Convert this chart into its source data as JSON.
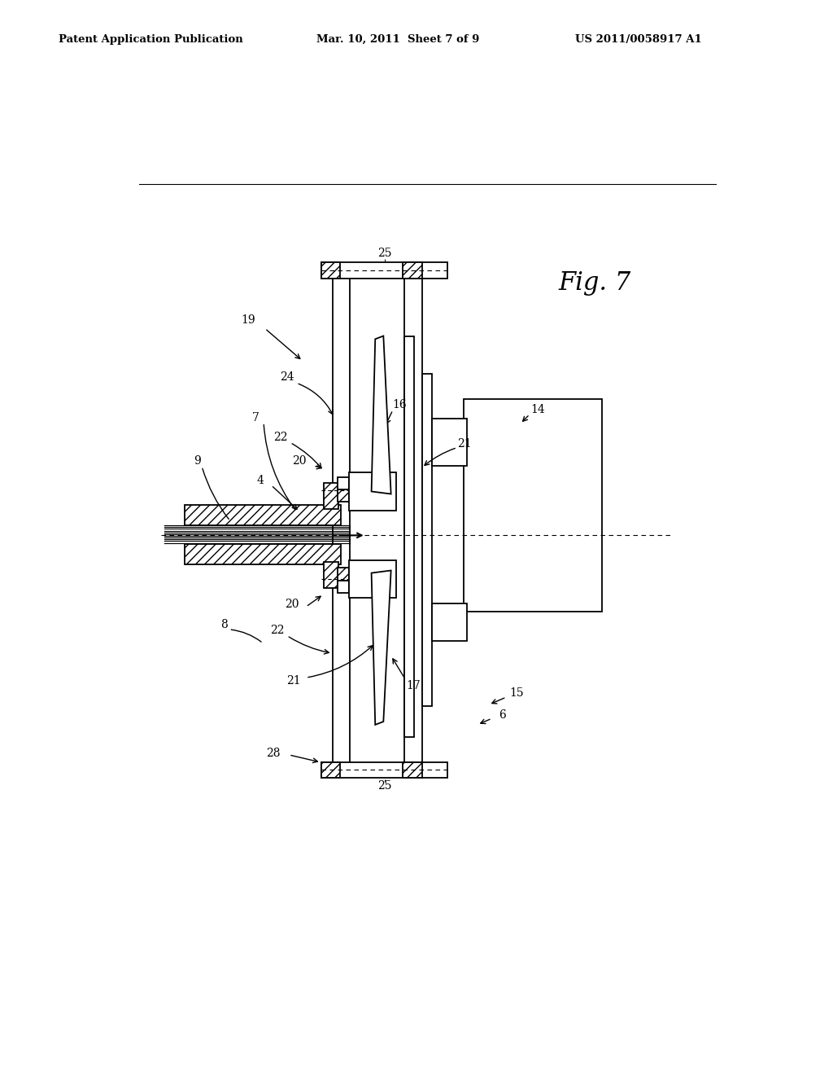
{
  "header_left": "Patent Application Publication",
  "header_center": "Mar. 10, 2011  Sheet 7 of 9",
  "header_right": "US 2011/0058917 A1",
  "fig_label": "Fig. 7",
  "bg_color": "#ffffff"
}
